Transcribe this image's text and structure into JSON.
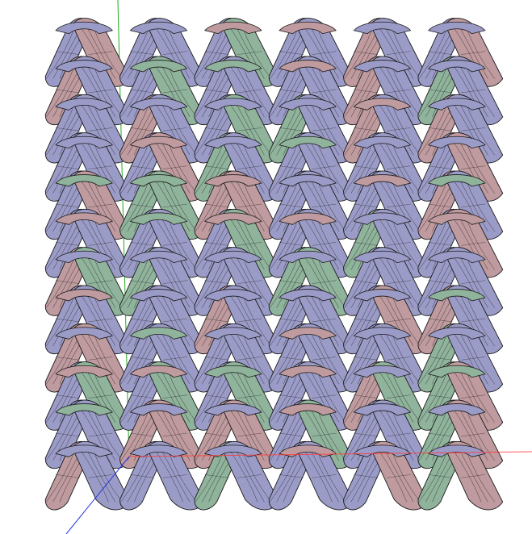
{
  "viewport": {
    "background": "#ffffff"
  },
  "fabric": {
    "columns": 6,
    "rows": 12,
    "palette": {
      "purple": "#9b9bc8",
      "rose": "#bf9a9e",
      "green": "#8fb39b",
      "edge": "#1a1a1a"
    }
  },
  "axes": {
    "x_color": "#ff3b3b",
    "y_color": "#22aa22",
    "z_color": "#2233dd"
  }
}
